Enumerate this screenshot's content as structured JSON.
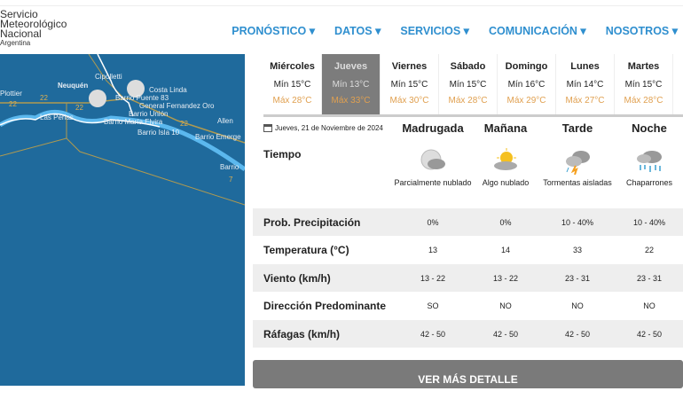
{
  "logo": {
    "line1": "Servicio",
    "line2": "Meteorológico",
    "line3": "Nacional",
    "line4": "Argentina"
  },
  "nav": [
    "PRONÓSTICO ▾",
    "DATOS ▾",
    "SERVICIOS ▾",
    "COMUNICACIÓN ▾",
    "NOSOTROS ▾"
  ],
  "map": {
    "labels": [
      "Neuquén",
      "Plottier",
      "Cipolletti",
      "Costa Linda",
      "Barrio Puente 83",
      "General Fernandez Oro",
      "Barrio Unión",
      "Barrio María Elvira",
      "Las Perlas",
      "Barrio Isla 10",
      "Allen",
      "Barrio Emerge",
      "Barrio",
      "22",
      "22",
      "22",
      "22",
      "7"
    ]
  },
  "days": [
    {
      "name": "Miércoles",
      "min": "Mín 15°C",
      "max": "Máx 28°C"
    },
    {
      "name": "Jueves",
      "min": "Mín 13°C",
      "max": "Máx 33°C",
      "selected": true
    },
    {
      "name": "Viernes",
      "min": "Mín 15°C",
      "max": "Máx 30°C"
    },
    {
      "name": "Sábado",
      "min": "Mín 15°C",
      "max": "Máx 28°C"
    },
    {
      "name": "Domingo",
      "min": "Mín 16°C",
      "max": "Máx 29°C"
    },
    {
      "name": "Lunes",
      "min": "Mín 14°C",
      "max": "Máx 27°C"
    },
    {
      "name": "Martes",
      "min": "Mín 15°C",
      "max": "Máx 28°C"
    }
  ],
  "date": "Jueves, 21 de Noviembre de 2024",
  "periods": [
    "Madrugada",
    "Mañana",
    "Tarde",
    "Noche"
  ],
  "tiempo_label": "Tiempo",
  "weather": [
    {
      "icon": "partly-cloudy-night-icon",
      "text": "Parcialmente nublado"
    },
    {
      "icon": "sun-cloud-icon",
      "text": "Algo nublado"
    },
    {
      "icon": "thunderstorm-icon",
      "text": "Tormentas aisladas"
    },
    {
      "icon": "showers-icon",
      "text": "Chaparrones"
    }
  ],
  "rows": [
    {
      "label": "Prob. Precipitación",
      "values": [
        "0%",
        "0%",
        "10 - 40%",
        "10 - 40%"
      ]
    },
    {
      "label": "Temperatura (°C)",
      "values": [
        "13",
        "14",
        "33",
        "22"
      ]
    },
    {
      "label": "Viento (km/h)",
      "values": [
        "13 - 22",
        "13 - 22",
        "23 - 31",
        "23 - 31"
      ]
    },
    {
      "label": "Dirección Predominante",
      "values": [
        "SO",
        "NO",
        "NO",
        "NO"
      ]
    },
    {
      "label": "Ráfagas (km/h)",
      "values": [
        "42 - 50",
        "42 - 50",
        "42 - 50",
        "42 - 50"
      ]
    }
  ],
  "button": "VER MÁS DETALLE",
  "colors": {
    "map": "#1f6a9c",
    "nav": "#2f8fcf",
    "max": "#e0a050",
    "selected": "#7c7c7c"
  }
}
